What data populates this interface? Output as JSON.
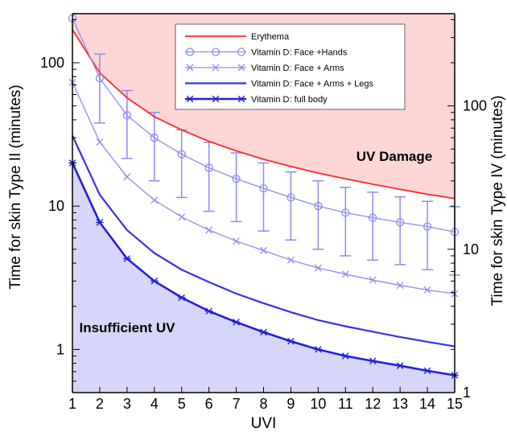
{
  "chart_data": {
    "type": "line",
    "xlabel": "UVI",
    "ylabel": "Time for skin Type II (minutes)",
    "ylabel_right": "Time for skin Type IV (minutes)",
    "xlim": [
      1,
      15
    ],
    "ylim": [
      0.5,
      220
    ],
    "yscale": "log",
    "ylim_right": [
      1,
      440
    ],
    "yscale_right": "log",
    "x_ticks": [
      "1",
      "2",
      "3",
      "4",
      "5",
      "6",
      "7",
      "8",
      "9",
      "10",
      "11",
      "12",
      "13",
      "14",
      "15"
    ],
    "y_ticks": [
      {
        "value": 1,
        "label": "1"
      },
      {
        "value": 10,
        "label": "10"
      },
      {
        "value": 100,
        "label": "100"
      }
    ],
    "y_ticks_right": [
      {
        "value": 1,
        "label": "1"
      },
      {
        "value": 10,
        "label": "10"
      },
      {
        "value": 100,
        "label": "100"
      }
    ],
    "grid": false,
    "legend_position": "top-center",
    "x": [
      1,
      2,
      3,
      4,
      5,
      6,
      7,
      8,
      9,
      10,
      11,
      12,
      13,
      14,
      15
    ],
    "series": [
      {
        "name": "Erythema",
        "color": "#ff2a2a",
        "marker": "none",
        "values": [
          170,
          85,
          57,
          42,
          34,
          28.3,
          24.3,
          21.2,
          18.9,
          17,
          15.5,
          14.2,
          13.1,
          12.1,
          11.3
        ]
      },
      {
        "name": "Vitamin D: Face +Hands",
        "color": "#8c8cf2",
        "marker": "circle",
        "values": [
          205,
          78,
          43,
          30,
          23,
          18.5,
          15.5,
          13.3,
          11.5,
          10.0,
          9.0,
          8.3,
          7.7,
          7.2,
          6.6
        ],
        "error_bars": [
          [
            null,
            null
          ],
          [
            38,
            115
          ],
          [
            21.5,
            64
          ],
          [
            15,
            45
          ],
          [
            11.5,
            34
          ],
          [
            9.2,
            27.8
          ],
          [
            7.8,
            23.5
          ],
          [
            6.7,
            20
          ],
          [
            5.8,
            17.3
          ],
          [
            5,
            15
          ],
          [
            4.5,
            13.5
          ],
          [
            4.2,
            12.5
          ],
          [
            3.9,
            11.6
          ],
          [
            3.6,
            10.8
          ],
          [
            3.3,
            9.9
          ]
        ]
      },
      {
        "name": "Vitamin D: Face + Arms",
        "color": "#8c8cf2",
        "marker": "x",
        "values": [
          73,
          28,
          16,
          11,
          8.4,
          6.8,
          5.7,
          4.9,
          4.2,
          3.7,
          3.35,
          3.05,
          2.8,
          2.6,
          2.45
        ]
      },
      {
        "name": "Vitamin D: Face + Arms + Legs",
        "color": "#3333ee",
        "marker": "none",
        "values": [
          31,
          12,
          6.8,
          4.7,
          3.6,
          2.95,
          2.45,
          2.1,
          1.82,
          1.6,
          1.45,
          1.33,
          1.22,
          1.13,
          1.05
        ]
      },
      {
        "name": "Vitamin D: full body",
        "color": "#2020dd",
        "marker": "asterisk",
        "values": [
          20,
          7.7,
          4.3,
          3.0,
          2.3,
          1.85,
          1.55,
          1.32,
          1.14,
          1.0,
          0.9,
          0.83,
          0.77,
          0.71,
          0.66
        ]
      }
    ],
    "regions": [
      {
        "label": "UV Damage",
        "color": "#ffd6d6"
      },
      {
        "label": "Insufficient UV",
        "color": "#d6d6f8"
      }
    ]
  }
}
